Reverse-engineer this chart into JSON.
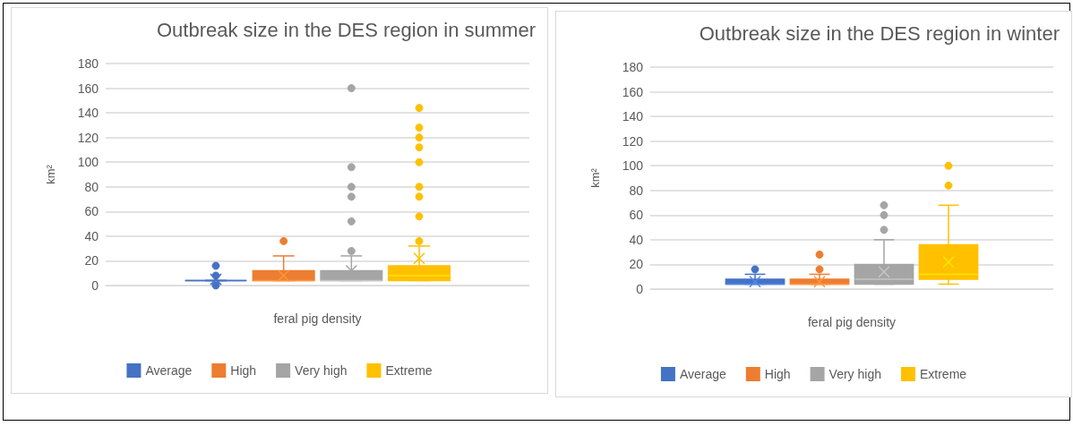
{
  "chart_data": [
    {
      "type": "box",
      "title": "Outbreak size in the DES region in summer",
      "xlabel": "feral pig density",
      "ylabel": "km²",
      "categories": [
        null
      ],
      "ylim": [
        0,
        180
      ],
      "yticks": [
        0,
        20,
        40,
        60,
        80,
        100,
        120,
        140,
        160,
        180
      ],
      "grid": "y",
      "legend": "bottom",
      "series": [
        {
          "name": "Average",
          "color": "#4472c4",
          "boxes": [
            {
              "low": 4,
              "q1": 4,
              "median": 4,
              "q3": 4,
              "high": 4,
              "mean": 5,
              "outliers": [
                0,
                8,
                16
              ]
            }
          ]
        },
        {
          "name": "High",
          "color": "#ed7d31",
          "boxes": [
            {
              "low": 4,
              "q1": 4,
              "median": 4,
              "q3": 12,
              "high": 24,
              "mean": 8,
              "outliers": [
                36
              ]
            }
          ]
        },
        {
          "name": "Very high",
          "color": "#a5a5a5",
          "boxes": [
            {
              "low": 4,
              "q1": 4,
              "median": 4,
              "q3": 12,
              "high": 24,
              "mean": 12,
              "outliers": [
                28,
                52,
                72,
                80,
                96,
                160
              ]
            }
          ]
        },
        {
          "name": "Extreme",
          "color": "#ffc000",
          "boxes": [
            {
              "low": 4,
              "q1": 4,
              "median": 8,
              "q3": 16,
              "high": 32,
              "mean": 22,
              "outliers": [
                36,
                56,
                72,
                80,
                100,
                112,
                120,
                128,
                144
              ]
            }
          ]
        }
      ]
    },
    {
      "type": "box",
      "title": "Outbreak size in the DES region in winter",
      "xlabel": "feral pig density",
      "ylabel": "km²",
      "categories": [
        null
      ],
      "ylim": [
        0,
        180
      ],
      "yticks": [
        0,
        20,
        40,
        60,
        80,
        100,
        120,
        140,
        160,
        180
      ],
      "grid": "y",
      "legend": "bottom",
      "series": [
        {
          "name": "Average",
          "color": "#4472c4",
          "boxes": [
            {
              "low": 4,
              "q1": 4,
              "median": 4,
              "q3": 8,
              "high": 12,
              "mean": 6,
              "outliers": [
                16
              ]
            }
          ]
        },
        {
          "name": "High",
          "color": "#ed7d31",
          "boxes": [
            {
              "low": 4,
              "q1": 4,
              "median": 4,
              "q3": 8,
              "high": 12,
              "mean": 6,
              "outliers": [
                16,
                28
              ]
            }
          ]
        },
        {
          "name": "Very high",
          "color": "#a5a5a5",
          "boxes": [
            {
              "low": 4,
              "q1": 4,
              "median": 8,
              "q3": 20,
              "high": 40,
              "mean": 14,
              "outliers": [
                48,
                60,
                68
              ]
            }
          ]
        },
        {
          "name": "Extreme",
          "color": "#ffc000",
          "boxes": [
            {
              "low": 4,
              "q1": 8,
              "median": 12,
              "q3": 36,
              "high": 68,
              "mean": 22,
              "outliers": [
                84,
                100
              ]
            }
          ]
        }
      ]
    }
  ]
}
